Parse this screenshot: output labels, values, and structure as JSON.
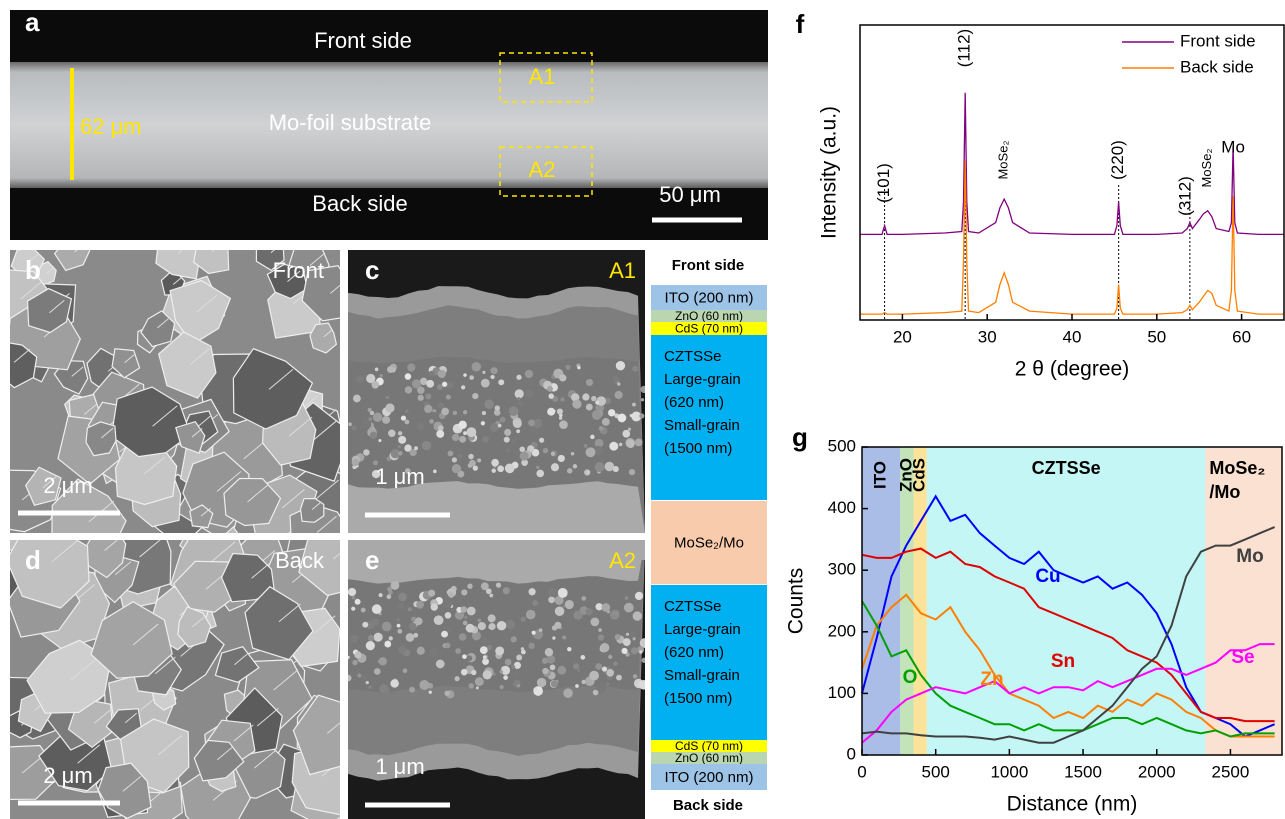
{
  "panel_a": {
    "label": "a",
    "top_text": "Front side",
    "bottom_text": "Back side",
    "thickness": "62 μm",
    "substrate": "Mo-foil substrate",
    "regions": [
      "A1",
      "A2"
    ],
    "scale_bar": "50 μm"
  },
  "panel_b": {
    "label": "b",
    "side": "Front",
    "scale_bar": "2 μm"
  },
  "panel_c": {
    "label": "c",
    "region": "A1",
    "scale_bar": "1 μm"
  },
  "panel_d": {
    "label": "d",
    "side": "Back",
    "scale_bar": "2 μm"
  },
  "panel_e": {
    "label": "e",
    "region": "A2",
    "scale_bar": "1 μm"
  },
  "layer_stack": {
    "top": "Front side",
    "bottom": "Back side",
    "layers": [
      {
        "text": [
          "ITO (200 nm)"
        ],
        "color": "#9dc3e6"
      },
      {
        "text": [
          "ZnO (60 nm)"
        ],
        "color": "#b9d6b0"
      },
      {
        "text": [
          "CdS (70 nm)"
        ],
        "color": "#ffff00"
      },
      {
        "text": [
          "CZTSSe",
          "Large-grain",
          "(620 nm)",
          "Small-grain",
          "(1500 nm)"
        ],
        "color": "#00b0f0"
      },
      {
        "text": [
          "MoSe₂/Mo"
        ],
        "color": "#f8cbad"
      },
      {
        "text": [
          "CZTSSe",
          "Large-grain",
          "(620 nm)",
          "Small-grain",
          "(1500 nm)"
        ],
        "color": "#00b0f0"
      },
      {
        "text": [
          "CdS (70 nm)"
        ],
        "color": "#ffff00"
      },
      {
        "text": [
          "ZnO (60 nm)"
        ],
        "color": "#b9d6b0"
      },
      {
        "text": [
          "ITO (200 nm)"
        ],
        "color": "#9dc3e6"
      }
    ]
  },
  "chart_data": [
    {
      "type": "line",
      "panel_label": "f",
      "x_label": "2 θ (degree)",
      "y_label": "Intensity (a.u.)",
      "xlim": [
        15,
        65
      ],
      "xticks": [
        20,
        30,
        40,
        50,
        60
      ],
      "ylim": [
        0,
        100
      ],
      "x": [
        15,
        17,
        17.6,
        17.9,
        18.2,
        20,
        25,
        27,
        27.2,
        27.4,
        27.6,
        27.8,
        29,
        31,
        31.5,
        32,
        32.5,
        33,
        35,
        40,
        45,
        45.3,
        45.5,
        45.7,
        46,
        50,
        53,
        53.6,
        53.9,
        54.2,
        55,
        55.5,
        56,
        56.5,
        57,
        58.5,
        58.8,
        59,
        59.2,
        59.5,
        62,
        65
      ],
      "series": [
        {
          "name": "Front side",
          "color": "#800080",
          "values": [
            29,
            29,
            29,
            32,
            29,
            29,
            29.5,
            30,
            40,
            77,
            40,
            30,
            29.5,
            33,
            38,
            41,
            38,
            33,
            29.5,
            29,
            29,
            32,
            40,
            32,
            29,
            29,
            29.5,
            31,
            33,
            31,
            34,
            36,
            37,
            35,
            31,
            30,
            33,
            59,
            33,
            29.5,
            29,
            29
          ]
        },
        {
          "name": "Back side",
          "color": "#ff7f00",
          "values": [
            2,
            2,
            2,
            2.5,
            2,
            2,
            2.5,
            3,
            20,
            54,
            20,
            3,
            2.5,
            6,
            12,
            16,
            12,
            6,
            3,
            2,
            2,
            4,
            12,
            4,
            2,
            2,
            2.5,
            3.5,
            5,
            3.5,
            6,
            8,
            10,
            9,
            5,
            3,
            10,
            42,
            10,
            3,
            2,
            2
          ]
        }
      ],
      "peak_labels": [
        {
          "label": "(101)",
          "x": 17.9
        },
        {
          "label": "(112)",
          "x": 27.4
        },
        {
          "label": "MoSe₂",
          "x": 32
        },
        {
          "label": "(220)",
          "x": 45.5
        },
        {
          "label": "(312)",
          "x": 53.9
        },
        {
          "label": "MoSe₂",
          "x": 56
        },
        {
          "label": "Mo",
          "x": 59
        }
      ],
      "reference_lines": [
        17.9,
        27.4,
        45.5,
        53.9
      ]
    },
    {
      "type": "line",
      "panel_label": "g",
      "x_label": "Distance (nm)",
      "y_label": "Counts",
      "xlim": [
        0,
        2850
      ],
      "xticks": [
        0,
        500,
        1000,
        1500,
        2000,
        2500
      ],
      "ylim": [
        0,
        500
      ],
      "yticks": [
        0,
        100,
        200,
        300,
        400,
        500
      ],
      "regions": [
        {
          "label": [
            "ITO"
          ],
          "from": 0,
          "to": 260,
          "color": "#a9bde6"
        },
        {
          "label": [
            "ZnO"
          ],
          "from": 260,
          "to": 350,
          "color": "#c3e4b9"
        },
        {
          "label": [
            "CdS"
          ],
          "from": 350,
          "to": 440,
          "color": "#fbe39a"
        },
        {
          "label": [
            "CZTSSe"
          ],
          "from": 440,
          "to": 2330,
          "color": "#c4f6f6"
        },
        {
          "label": [
            "MoSe₂",
            "/Mo"
          ],
          "from": 2330,
          "to": 2850,
          "color": "#fbe1d2"
        }
      ],
      "x": [
        0,
        100,
        200,
        300,
        400,
        500,
        600,
        700,
        800,
        900,
        1000,
        1100,
        1200,
        1300,
        1400,
        1500,
        1600,
        1700,
        1800,
        1900,
        2000,
        2100,
        2200,
        2300,
        2400,
        2500,
        2600,
        2700,
        2800
      ],
      "series": [
        {
          "name": "Cu",
          "color": "#0000ff",
          "values": [
            100,
            190,
            290,
            340,
            380,
            420,
            380,
            390,
            360,
            340,
            320,
            310,
            330,
            300,
            290,
            280,
            290,
            270,
            280,
            260,
            230,
            180,
            110,
            70,
            60,
            50,
            30,
            40,
            50
          ]
        },
        {
          "name": "Sn",
          "color": "#e00000",
          "values": [
            325,
            320,
            320,
            330,
            335,
            320,
            330,
            310,
            305,
            290,
            280,
            270,
            240,
            230,
            220,
            210,
            200,
            190,
            170,
            160,
            150,
            130,
            100,
            70,
            60,
            60,
            55,
            55,
            55
          ]
        },
        {
          "name": "Zn",
          "color": "#ff7f00",
          "values": [
            140,
            210,
            240,
            260,
            230,
            220,
            240,
            200,
            170,
            130,
            100,
            90,
            80,
            60,
            70,
            60,
            80,
            70,
            90,
            80,
            100,
            90,
            70,
            60,
            40,
            30,
            30,
            30,
            30
          ]
        },
        {
          "name": "O",
          "color": "#00a000",
          "values": [
            250,
            210,
            160,
            170,
            130,
            100,
            80,
            70,
            60,
            50,
            50,
            40,
            50,
            40,
            40,
            40,
            50,
            60,
            60,
            50,
            60,
            50,
            40,
            35,
            40,
            30,
            35,
            35,
            35
          ]
        },
        {
          "name": "Se",
          "color": "#ff00ff",
          "values": [
            20,
            40,
            70,
            90,
            100,
            110,
            105,
            100,
            110,
            120,
            100,
            110,
            100,
            110,
            110,
            105,
            120,
            110,
            120,
            130,
            140,
            140,
            130,
            140,
            150,
            170,
            170,
            180,
            180
          ]
        },
        {
          "name": "Mo",
          "color": "#404040",
          "values": [
            35,
            38,
            35,
            35,
            32,
            30,
            30,
            30,
            28,
            25,
            30,
            25,
            20,
            20,
            30,
            40,
            60,
            80,
            110,
            140,
            160,
            210,
            290,
            330,
            340,
            340,
            350,
            360,
            370
          ]
        }
      ]
    }
  ]
}
